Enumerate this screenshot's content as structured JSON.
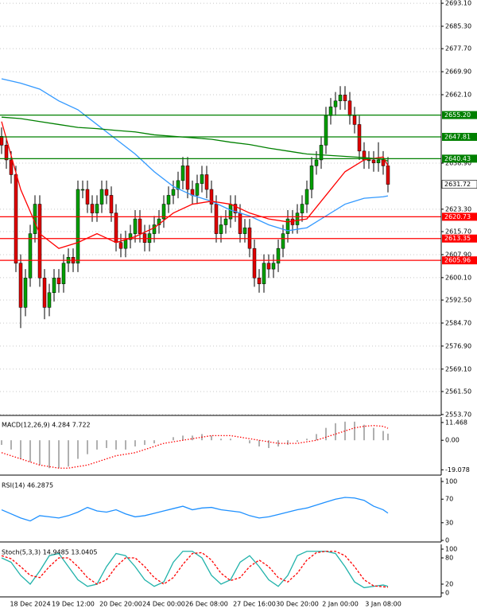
{
  "chart_data": [
    {
      "type": "candlestick",
      "ylim": [
        2553.4,
        2694.2
      ],
      "grid": true,
      "yticks": [
        {
          "value": 2693.1,
          "label": "2693.10"
        },
        {
          "value": 2685.3,
          "label": "2685.30"
        },
        {
          "value": 2677.7,
          "label": "2677.70"
        },
        {
          "value": 2669.9,
          "label": "2669.90"
        },
        {
          "value": 2662.1,
          "label": "2662.10"
        },
        {
          "value": 2638.9,
          "label": "2638.90"
        },
        {
          "value": 2623.3,
          "label": "2623.30"
        },
        {
          "value": 2615.7,
          "label": "2615.70"
        },
        {
          "value": 2607.9,
          "label": "2607.90"
        },
        {
          "value": 2600.1,
          "label": "2600.10"
        },
        {
          "value": 2592.5,
          "label": "2592.50"
        },
        {
          "value": 2584.7,
          "label": "2584.70"
        },
        {
          "value": 2576.9,
          "label": "2576.90"
        },
        {
          "value": 2569.1,
          "label": "2569.10"
        },
        {
          "value": 2561.5,
          "label": "2561.50"
        },
        {
          "value": 2553.7,
          "label": "2553.70"
        }
      ],
      "categories": [
        null,
        null,
        null,
        "18 Dec 2024",
        null,
        null,
        null,
        null,
        null,
        null,
        null,
        null,
        "19 Dec 12:00",
        null,
        null,
        null,
        null,
        null,
        null,
        null,
        null,
        null,
        "20 Dec 20:00",
        null,
        null,
        null,
        null,
        null,
        null,
        null,
        null,
        "24 Dec 00:00",
        null,
        null,
        null,
        null,
        null,
        null,
        null,
        null,
        "26 Dec 08:00",
        null,
        null,
        null,
        null,
        null,
        null,
        null,
        null,
        null,
        "27 Dec 16:00",
        null,
        null,
        null,
        null,
        null,
        null,
        null,
        null,
        "30 Dec 20:00",
        null,
        null,
        null,
        null,
        null,
        null,
        null,
        null,
        "2 Jan 00:00",
        null,
        null,
        null,
        null,
        null,
        null,
        null,
        null,
        "3 Jan 08:00",
        null,
        null,
        null,
        null
      ],
      "up_color": "#00a000",
      "down_color": "#e00000",
      "open": [
        2648,
        2645,
        2640,
        2635,
        2605,
        2590,
        2600,
        2615,
        2625,
        2600,
        2590,
        2595,
        2600,
        2598,
        2605,
        2607,
        2605,
        2630,
        2630,
        2625,
        2622,
        2625,
        2630,
        2628,
        2622,
        2612,
        2610,
        2613,
        2615,
        2620,
        2615,
        2612,
        2615,
        2618,
        2620,
        2625,
        2628,
        2630,
        2633,
        2638,
        2630,
        2628,
        2632,
        2635,
        2630,
        2625,
        2615,
        2618,
        2620,
        2625,
        2622,
        2615,
        2617,
        2610,
        2600,
        2598,
        2605,
        2603,
        2605,
        2610,
        2615,
        2620,
        2618,
        2622,
        2625,
        2630,
        2638,
        2640,
        2645,
        2655,
        2658,
        2660,
        2662,
        2660,
        2655,
        2652,
        2643,
        2640,
        2640,
        2639,
        2640,
        2638
      ],
      "high": [
        2651,
        2648,
        2643,
        2638,
        2608,
        2603,
        2618,
        2628,
        2628,
        2603,
        2598,
        2603,
        2603,
        2608,
        2610,
        2610,
        2633,
        2633,
        2633,
        2628,
        2628,
        2633,
        2633,
        2631,
        2625,
        2615,
        2616,
        2618,
        2623,
        2623,
        2618,
        2618,
        2621,
        2623,
        2628,
        2631,
        2633,
        2636,
        2641,
        2641,
        2633,
        2635,
        2638,
        2638,
        2633,
        2628,
        2621,
        2623,
        2628,
        2628,
        2625,
        2620,
        2620,
        2613,
        2603,
        2608,
        2608,
        2608,
        2613,
        2618,
        2623,
        2623,
        2625,
        2628,
        2633,
        2641,
        2643,
        2648,
        2658,
        2661,
        2663,
        2665,
        2665,
        2663,
        2658,
        2655,
        2646,
        2643,
        2643,
        2646,
        2643,
        2641
      ],
      "low": [
        2642,
        2637,
        2632,
        2602,
        2583,
        2587,
        2597,
        2612,
        2597,
        2586,
        2587,
        2592,
        2595,
        2595,
        2602,
        2602,
        2602,
        2627,
        2622,
        2619,
        2619,
        2622,
        2625,
        2619,
        2609,
        2607,
        2607,
        2610,
        2612,
        2612,
        2609,
        2609,
        2612,
        2615,
        2617,
        2622,
        2625,
        2627,
        2630,
        2627,
        2625,
        2625,
        2629,
        2627,
        2622,
        2612,
        2612,
        2615,
        2617,
        2619,
        2612,
        2612,
        2607,
        2597,
        2595,
        2595,
        2600,
        2600,
        2602,
        2607,
        2612,
        2615,
        2615,
        2619,
        2622,
        2627,
        2635,
        2637,
        2642,
        2652,
        2655,
        2657,
        2657,
        2652,
        2649,
        2640,
        2637,
        2637,
        2636,
        2636,
        2635,
        2629
      ],
      "close": [
        2645,
        2640,
        2635,
        2605,
        2590,
        2600,
        2615,
        2625,
        2600,
        2590,
        2595,
        2600,
        2598,
        2605,
        2607,
        2605,
        2630,
        2630,
        2625,
        2622,
        2625,
        2630,
        2628,
        2622,
        2612,
        2610,
        2613,
        2615,
        2620,
        2615,
        2612,
        2615,
        2618,
        2620,
        2625,
        2628,
        2630,
        2633,
        2638,
        2630,
        2628,
        2632,
        2635,
        2630,
        2625,
        2615,
        2618,
        2620,
        2625,
        2622,
        2615,
        2617,
        2610,
        2600,
        2598,
        2605,
        2603,
        2605,
        2610,
        2615,
        2620,
        2618,
        2622,
        2625,
        2630,
        2638,
        2640,
        2645,
        2655,
        2658,
        2660,
        2662,
        2660,
        2655,
        2652,
        2643,
        2640,
        2640,
        2639,
        2640,
        2638,
        2631.72
      ],
      "series": [
        {
          "color": "#3399ff",
          "x": [
            0,
            4,
            8,
            12,
            16,
            20,
            24,
            28,
            32,
            36,
            40,
            44,
            48,
            52,
            56,
            60,
            64,
            68,
            72,
            76,
            80,
            81
          ],
          "values": [
            2667.5,
            2666,
            2664,
            2660,
            2657,
            2652,
            2647,
            2642,
            2636,
            2631,
            2628,
            2626,
            2623,
            2621,
            2618,
            2616,
            2617,
            2621,
            2625,
            2627,
            2627.5,
            2627.8
          ]
        },
        {
          "color": "#008000",
          "x": [
            0,
            4,
            8,
            12,
            16,
            20,
            24,
            28,
            32,
            36,
            40,
            44,
            48,
            52,
            56,
            60,
            64,
            68,
            72,
            76,
            80,
            81
          ],
          "values": [
            2654.5,
            2654,
            2653,
            2652,
            2651,
            2650.6,
            2650,
            2649.5,
            2648.5,
            2648,
            2647.5,
            2647,
            2646,
            2645.2,
            2644,
            2643,
            2642,
            2641.6,
            2641.2,
            2640.8,
            2640.2,
            2639.6
          ]
        },
        {
          "color": "#ff0000",
          "x": [
            0,
            4,
            8,
            12,
            16,
            20,
            24,
            28,
            32,
            36,
            40,
            44,
            48,
            52,
            56,
            60,
            64,
            68,
            72,
            76,
            80,
            81
          ],
          "values": [
            2653,
            2630,
            2615,
            2610,
            2612,
            2615,
            2612,
            2614,
            2617,
            2622,
            2625,
            2626,
            2625,
            2622,
            2620,
            2619,
            2620,
            2628,
            2636,
            2640,
            2641,
            2638
          ]
        }
      ],
      "levels": [
        {
          "value": 2655.2,
          "label": "2655.20",
          "color": "#008000"
        },
        {
          "value": 2647.81,
          "label": "2647.81",
          "color": "#008000"
        },
        {
          "value": 2640.43,
          "label": "2640.43",
          "color": "#008000"
        },
        {
          "value": 2620.73,
          "label": "2620.73",
          "color": "#ff0000"
        },
        {
          "value": 2613.35,
          "label": "2613.35",
          "color": "#ff0000"
        },
        {
          "value": 2605.96,
          "label": "2605.96",
          "color": "#ff0000"
        }
      ],
      "last_price": 2631.72
    },
    {
      "type": "macd",
      "title": "MACD(12,26,9) 4.284 7.722",
      "ylim": [
        -22.5,
        15
      ],
      "yticks": [
        11.468,
        {
          "value": 0,
          "label": "0.00"
        },
        -19.078
      ],
      "x": [
        0,
        2,
        4,
        6,
        8,
        10,
        12,
        14,
        16,
        18,
        20,
        22,
        24,
        26,
        28,
        30,
        32,
        34,
        36,
        38,
        40,
        42,
        44,
        46,
        48,
        50,
        52,
        54,
        56,
        58,
        60,
        62,
        64,
        66,
        68,
        70,
        72,
        74,
        76,
        78,
        80,
        81
      ],
      "series": [
        {
          "color": "#b0b0b0",
          "style": "bar",
          "values": [
            -3,
            -6,
            -12,
            -14,
            -16,
            -18,
            -18,
            -17,
            -12,
            -9,
            -6,
            -5,
            -6,
            -6,
            -4,
            -3,
            -2,
            0,
            2,
            3,
            3,
            4,
            3,
            1,
            1,
            0,
            -2,
            -4,
            -5,
            -4,
            -3,
            -1,
            1,
            4,
            8,
            11,
            12,
            12,
            10,
            8,
            6,
            4.284
          ]
        },
        {
          "color": "#ff0000",
          "style": "dotted",
          "values": [
            -8,
            -10,
            -12,
            -14,
            -16,
            -17,
            -18,
            -18,
            -17,
            -16,
            -14,
            -12,
            -10,
            -9,
            -8,
            -6,
            -4,
            -2,
            -1,
            0,
            1,
            2,
            3,
            3,
            3,
            2,
            1,
            0,
            -1,
            -2,
            -2,
            -2,
            -1,
            0,
            2,
            4,
            6,
            8,
            9,
            9.5,
            9,
            7.722
          ]
        }
      ]
    },
    {
      "type": "line",
      "title": "RSI(14) 46.2875",
      "ylim": [
        -2.7,
        106.8
      ],
      "yticks": [
        100,
        70,
        30,
        0
      ],
      "x": [
        0,
        2,
        4,
        6,
        8,
        10,
        12,
        14,
        16,
        18,
        20,
        22,
        24,
        26,
        28,
        30,
        32,
        34,
        36,
        38,
        40,
        42,
        44,
        46,
        48,
        50,
        52,
        54,
        56,
        58,
        60,
        62,
        64,
        66,
        68,
        70,
        72,
        74,
        76,
        78,
        80,
        81
      ],
      "series": [
        {
          "color": "#1e90ff",
          "style": "solid",
          "values": [
            52,
            45,
            38,
            33,
            42,
            40,
            38,
            42,
            48,
            56,
            50,
            48,
            52,
            45,
            40,
            42,
            46,
            50,
            54,
            58,
            52,
            55,
            56,
            52,
            50,
            48,
            42,
            38,
            40,
            44,
            48,
            52,
            55,
            60,
            65,
            70,
            73,
            72,
            68,
            58,
            52,
            46.2875
          ]
        }
      ]
    },
    {
      "type": "line",
      "title": "Stoch(5,3,3) 14.9485 13.0405",
      "ylim": [
        -9.1,
        110.9
      ],
      "yticks": [
        100,
        80,
        20,
        0
      ],
      "x": [
        0,
        2,
        4,
        6,
        8,
        10,
        12,
        14,
        16,
        18,
        20,
        22,
        24,
        26,
        28,
        30,
        32,
        34,
        36,
        38,
        40,
        42,
        44,
        46,
        48,
        50,
        52,
        54,
        56,
        58,
        60,
        62,
        64,
        66,
        68,
        70,
        72,
        74,
        76,
        78,
        80,
        81
      ],
      "series": [
        {
          "color": "#20b2aa",
          "style": "solid",
          "values": [
            80,
            70,
            40,
            20,
            50,
            85,
            90,
            60,
            30,
            15,
            20,
            60,
            90,
            85,
            60,
            30,
            15,
            25,
            70,
            95,
            95,
            80,
            40,
            20,
            30,
            70,
            85,
            60,
            30,
            15,
            40,
            85,
            95,
            95,
            95,
            90,
            60,
            25,
            12,
            15,
            18,
            14.9485
          ]
        },
        {
          "color": "#ff0000",
          "style": "dashed",
          "values": [
            85,
            78,
            60,
            40,
            35,
            60,
            80,
            80,
            60,
            35,
            20,
            30,
            60,
            80,
            80,
            60,
            35,
            20,
            35,
            65,
            90,
            92,
            75,
            45,
            28,
            35,
            60,
            75,
            60,
            35,
            25,
            45,
            75,
            92,
            95,
            95,
            85,
            60,
            30,
            16,
            14,
            13.0405
          ]
        }
      ]
    }
  ]
}
